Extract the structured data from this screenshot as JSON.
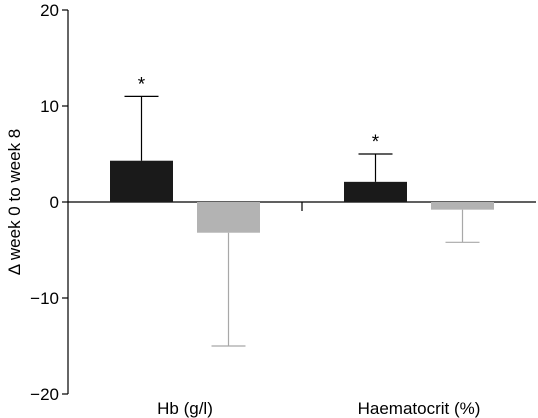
{
  "chart_data": {
    "type": "bar",
    "categories": [
      "Hb (g/l)",
      "Haematocrit (%)"
    ],
    "ylabel": "Δ week 0 to week 8",
    "ylim": [
      -20,
      20
    ],
    "yticks": [
      -20,
      -10,
      0,
      10,
      20
    ],
    "grid": false,
    "series": [
      {
        "values": [
          4.3,
          2.1
        ],
        "error_upper": [
          11.0,
          5.0
        ],
        "significance": [
          "*",
          "*"
        ],
        "color": "#1a1a1a"
      },
      {
        "values": [
          -3.2,
          -0.8
        ],
        "error_lower": [
          -15.0,
          -4.2
        ],
        "significance": [
          "",
          ""
        ],
        "color": "#b3b3b3"
      }
    ]
  }
}
